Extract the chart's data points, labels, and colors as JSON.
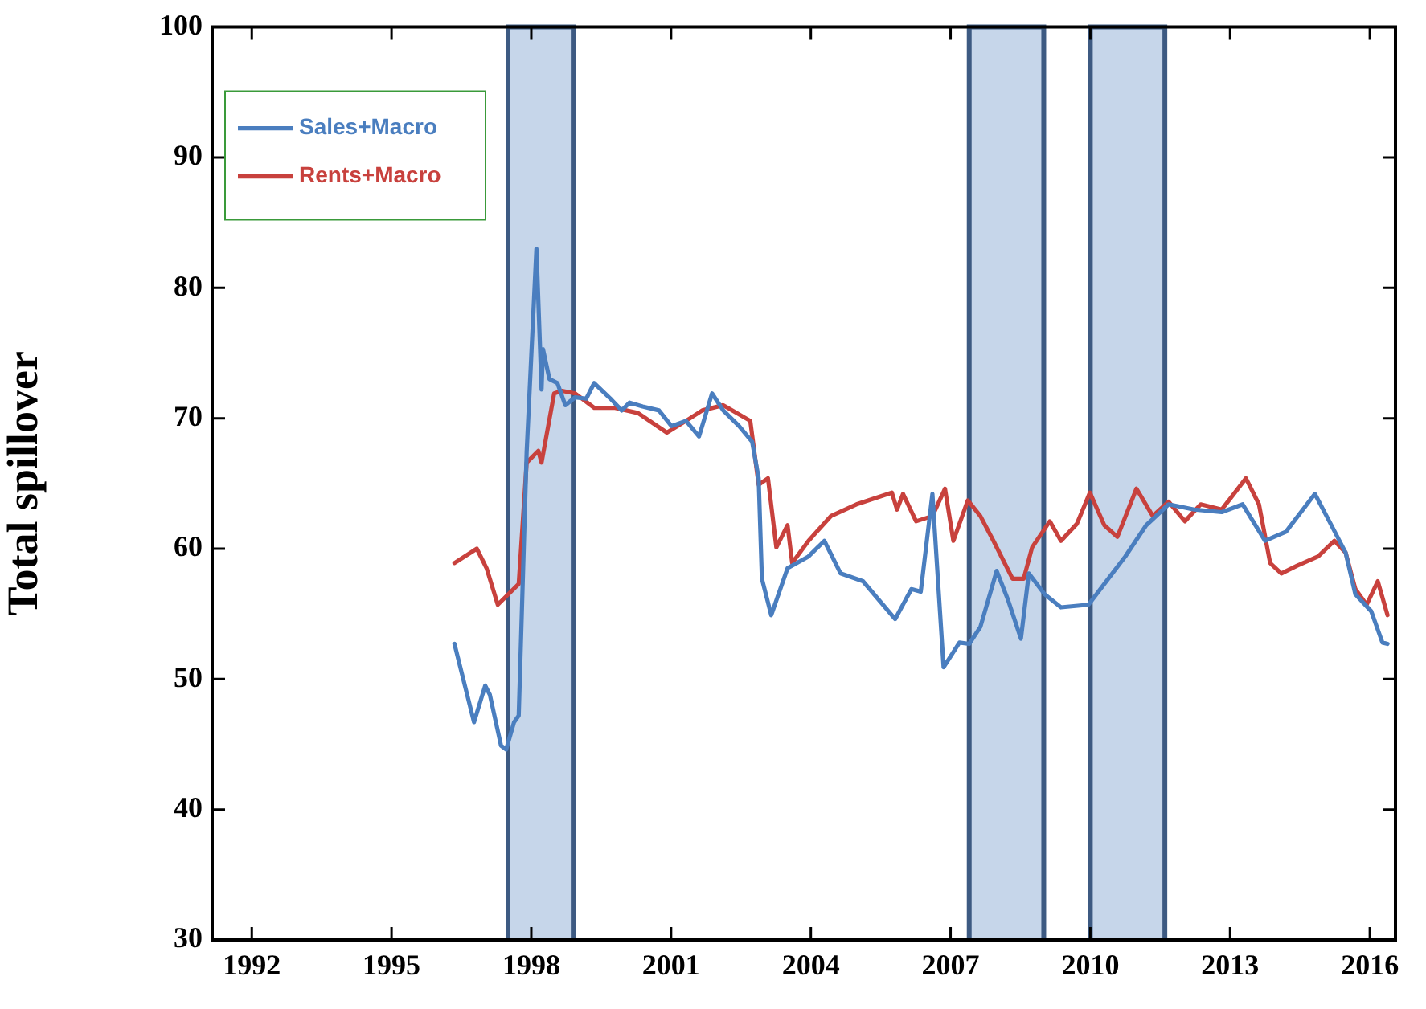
{
  "chart_data": {
    "type": "line",
    "ylabel": "Total spillover",
    "xlim": [
      1991.15,
      2016.55
    ],
    "xticks": [
      1992,
      1995,
      1998,
      2001,
      2004,
      2007,
      2010,
      2013,
      2016
    ],
    "ylim": [
      30,
      100
    ],
    "yticks": [
      30,
      40,
      50,
      60,
      70,
      80,
      90,
      100
    ],
    "grid": false,
    "legend": "top left",
    "marker": "none",
    "line_style": "solid",
    "bands": [
      {
        "axis": "x",
        "from": 1997.5,
        "to": 1998.9,
        "color": "#c6d6ea"
      },
      {
        "axis": "x",
        "from": 2007.4,
        "to": 2009.0,
        "color": "#c6d6ea"
      },
      {
        "axis": "x",
        "from": 2010.0,
        "to": 2011.6,
        "color": "#c6d6ea"
      }
    ],
    "series": [
      {
        "name": "Sales+Macro",
        "color": "#4a7ebf",
        "x": [
          1996.35,
          1996.77,
          1997.01,
          1997.11,
          1997.35,
          1997.46,
          1997.63,
          1997.73,
          1997.9,
          1998.11,
          1998.22,
          1998.25,
          1998.39,
          1998.56,
          1998.73,
          1998.94,
          1999.18,
          1999.35,
          1999.7,
          1999.94,
          2000.11,
          2000.39,
          2000.74,
          2001.01,
          2001.32,
          2001.6,
          2001.88,
          2002.12,
          2002.46,
          2002.74,
          2002.88,
          2002.95,
          2003.15,
          2003.5,
          2003.95,
          2004.29,
          2004.64,
          2005.12,
          2005.81,
          2006.16,
          2006.36,
          2006.61,
          2006.85,
          2007.19,
          2007.4,
          2007.64,
          2007.99,
          2008.23,
          2008.51,
          2008.68,
          2009.02,
          2009.37,
          2009.96,
          2010.3,
          2010.75,
          2011.2,
          2011.68,
          2012.23,
          2012.82,
          2013.27,
          2013.75,
          2014.2,
          2014.82,
          2015.13,
          2015.48,
          2015.69,
          2016.03,
          2016.27,
          2016.38
        ],
        "values": [
          52.7,
          46.7,
          49.5,
          48.8,
          44.9,
          44.6,
          46.7,
          47.2,
          67.4,
          83.0,
          72.2,
          75.3,
          73.0,
          72.7,
          71.0,
          71.6,
          71.5,
          72.7,
          71.5,
          70.6,
          71.2,
          70.9,
          70.6,
          69.4,
          69.8,
          68.6,
          71.9,
          70.6,
          69.4,
          68.2,
          65.4,
          57.7,
          54.9,
          58.5,
          59.4,
          60.6,
          58.1,
          57.5,
          54.6,
          56.9,
          56.7,
          64.2,
          50.9,
          52.8,
          52.7,
          54.0,
          58.3,
          56.1,
          53.1,
          58.1,
          56.5,
          55.5,
          55.7,
          57.3,
          59.4,
          61.8,
          63.4,
          63.0,
          62.8,
          63.4,
          60.6,
          61.3,
          64.2,
          62.1,
          59.7,
          56.5,
          55.2,
          52.8,
          52.7
        ]
      },
      {
        "name": "Rents+Macro",
        "color": "#c8413d",
        "x": [
          1996.35,
          1996.83,
          1997.04,
          1997.28,
          1997.73,
          1997.9,
          1998.15,
          1998.22,
          1998.49,
          1998.66,
          1998.94,
          1999.35,
          1999.8,
          2000.29,
          2000.91,
          2001.32,
          2001.67,
          2002.12,
          2002.7,
          2002.88,
          2003.08,
          2003.26,
          2003.5,
          2003.6,
          2003.95,
          2004.43,
          2004.98,
          2005.74,
          2005.85,
          2005.98,
          2006.26,
          2006.61,
          2006.88,
          2007.06,
          2007.37,
          2007.64,
          2007.92,
          2008.33,
          2008.57,
          2008.75,
          2009.13,
          2009.37,
          2009.71,
          2009.99,
          2010.3,
          2010.58,
          2010.99,
          2011.34,
          2011.68,
          2012.03,
          2012.37,
          2012.82,
          2013.34,
          2013.62,
          2013.86,
          2014.1,
          2014.44,
          2014.89,
          2015.24,
          2015.48,
          2015.69,
          2015.93,
          2016.17,
          2016.38
        ],
        "values": [
          58.9,
          60.0,
          58.5,
          55.7,
          57.3,
          66.6,
          67.5,
          66.6,
          71.9,
          72.1,
          71.9,
          70.8,
          70.8,
          70.4,
          68.9,
          69.8,
          70.6,
          71.0,
          69.8,
          64.9,
          65.4,
          60.1,
          61.8,
          58.9,
          60.6,
          62.5,
          63.4,
          64.3,
          63.0,
          64.2,
          62.1,
          62.5,
          64.6,
          60.6,
          63.7,
          62.5,
          60.6,
          57.7,
          57.7,
          60.1,
          62.1,
          60.6,
          61.9,
          64.3,
          61.8,
          60.9,
          64.6,
          62.5,
          63.6,
          62.1,
          63.4,
          63.0,
          65.4,
          63.4,
          58.9,
          58.1,
          58.7,
          59.4,
          60.6,
          59.7,
          56.9,
          55.7,
          57.5,
          54.9
        ]
      }
    ]
  }
}
